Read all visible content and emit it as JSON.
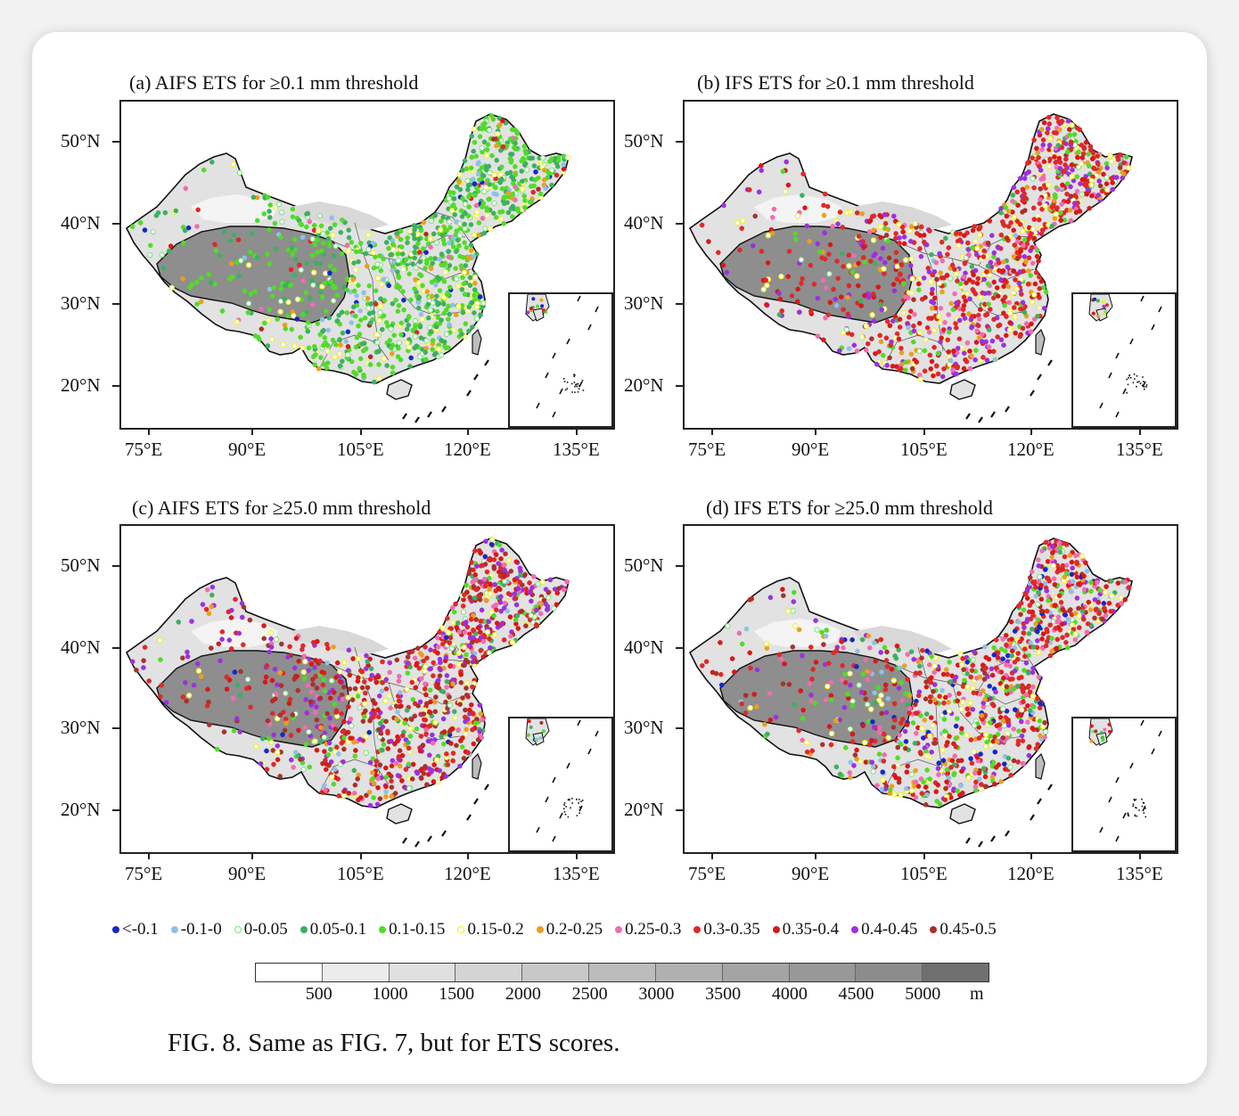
{
  "figure": {
    "caption": "FIG. 8. Same as FIG. 7, but for ETS scores."
  },
  "panels": [
    {
      "title": "(a) AIFS ETS for ≥0.1 mm threshold",
      "mix": [
        0.02,
        0.05,
        0.08,
        0.25,
        0.38,
        0.12,
        0.04,
        0.02,
        0.02,
        0.01,
        0.0,
        0.01
      ]
    },
    {
      "title": "(b) IFS ETS for ≥0.1 mm threshold",
      "mix": [
        0.0,
        0.01,
        0.02,
        0.03,
        0.07,
        0.12,
        0.06,
        0.08,
        0.28,
        0.16,
        0.14,
        0.03
      ]
    },
    {
      "title": "(c) AIFS ETS for ≥25.0 mm threshold",
      "mix": [
        0.01,
        0.02,
        0.03,
        0.04,
        0.07,
        0.08,
        0.05,
        0.06,
        0.18,
        0.14,
        0.16,
        0.16
      ]
    },
    {
      "title": "(d) IFS ETS for ≥25.0 mm threshold",
      "mix": [
        0.05,
        0.05,
        0.03,
        0.04,
        0.1,
        0.07,
        0.06,
        0.1,
        0.22,
        0.13,
        0.08,
        0.07
      ]
    }
  ],
  "axes": {
    "lat_labels": [
      "50°N",
      "40°N",
      "30°N",
      "20°N"
    ],
    "lon_labels": [
      "75°E",
      "90°E",
      "105°E",
      "120°E",
      "135°E"
    ]
  },
  "legend": {
    "items": [
      {
        "label": "<-0.1",
        "color": "#1428c8",
        "filled": true
      },
      {
        "label": "-0.1-0",
        "color": "#8fc0e8",
        "filled": true
      },
      {
        "label": "0-0.05",
        "color": "#7ee07e",
        "filled": false
      },
      {
        "label": "0.05-0.1",
        "color": "#3cb060",
        "filled": true
      },
      {
        "label": "0.1-0.15",
        "color": "#50dc28",
        "filled": true
      },
      {
        "label": "0.15-0.2",
        "color": "#f0f020",
        "filled": false
      },
      {
        "label": "0.2-0.25",
        "color": "#e8a020",
        "filled": true
      },
      {
        "label": "0.25-0.3",
        "color": "#f06cb4",
        "filled": true
      },
      {
        "label": "0.3-0.35",
        "color": "#e02828",
        "filled": true
      },
      {
        "label": "0.35-0.4",
        "color": "#d81818",
        "filled": true
      },
      {
        "label": "0.4-0.45",
        "color": "#9b30e0",
        "filled": true
      },
      {
        "label": "0.45-0.5",
        "color": "#a83228",
        "filled": true
      }
    ]
  },
  "elevation_colorbar": {
    "labels": [
      "500",
      "1000",
      "1500",
      "2000",
      "2500",
      "3000",
      "3500",
      "4000",
      "4500",
      "5000"
    ],
    "unit": "m",
    "colors": [
      "#ffffff",
      "#ececec",
      "#e0e0e0",
      "#d4d4d4",
      "#c8c8c8",
      "#bcbcbc",
      "#b0b0b0",
      "#a4a4a4",
      "#989898",
      "#8c8c8c",
      "#707070"
    ]
  }
}
